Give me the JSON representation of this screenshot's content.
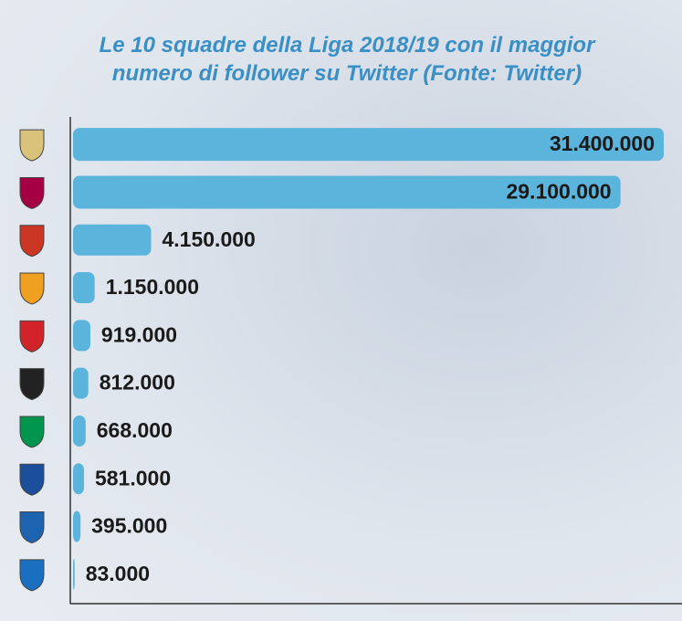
{
  "chart_data": {
    "type": "hbar",
    "title": "Le 10 squadre della Liga 2018/19 con il maggior numero di follower su Twitter (Fonte: Twitter)",
    "categories": [
      null,
      null,
      null,
      null,
      null,
      null,
      null,
      null,
      null,
      null
    ],
    "values": [
      31400000,
      29100000,
      4150000,
      1150000,
      919000,
      812000,
      668000,
      581000,
      395000,
      83000
    ],
    "value_labels": [
      "31.400.000",
      "29.100.000",
      "4.150.000",
      "1.150.000",
      "919.000",
      "812.000",
      "668.000",
      "581.000",
      "395.000",
      "83.000"
    ],
    "color": "#5ab4dc"
  }
}
